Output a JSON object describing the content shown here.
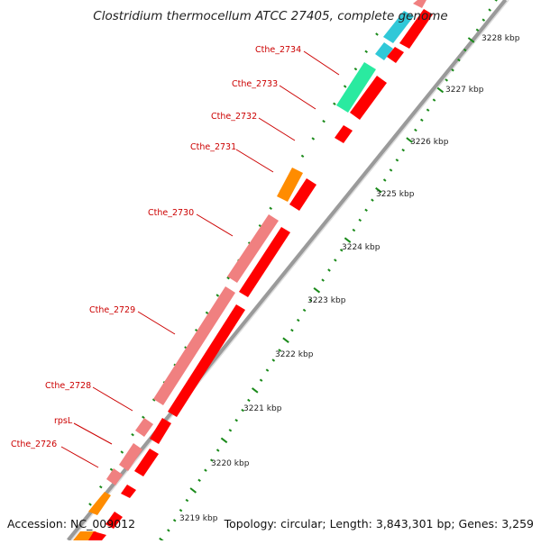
{
  "title": "Clostridium thermocellum ATCC 27405, complete genome",
  "footer": {
    "accession": "Accession: NC_009012",
    "topology": "Topology: circular; Length: 3,843,301 bp; Genes: 3,259"
  },
  "colors": {
    "label_red": "#cc0000",
    "gene_red": "#ff0000",
    "gene_pink": "#f08080",
    "gene_orange": "#ff8c00",
    "gene_teal": "#2aeaa0",
    "gene_cyan": "#30c8d8",
    "tick_green": "#1a8a1a",
    "backbone_gray": "#888888"
  },
  "scale_labels": [
    "3219 kbp",
    "3220 kbp",
    "3221 kbp",
    "3222 kbp",
    "3223 kbp",
    "3224 kbp",
    "3225 kbp",
    "3226 kbp",
    "3227 kbp",
    "3228 kbp"
  ],
  "gene_labels": [
    "Cthe_2726",
    "rpsL",
    "Cthe_2728",
    "Cthe_2729",
    "Cthe_2730",
    "Cthe_2731",
    "Cthe_2732",
    "Cthe_2733",
    "Cthe_2734"
  ]
}
